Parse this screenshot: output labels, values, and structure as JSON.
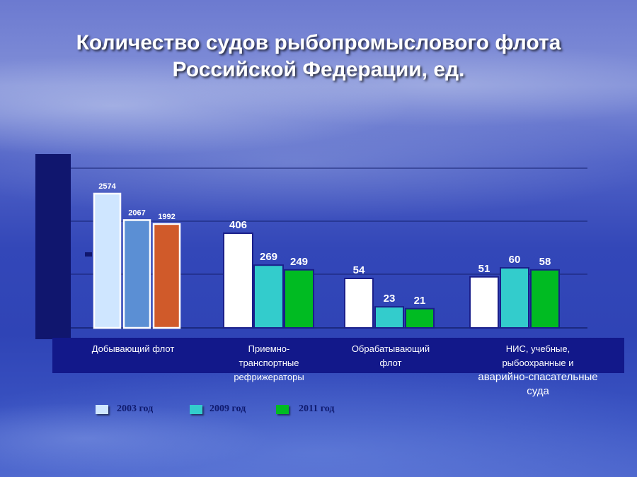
{
  "title_lines": [
    "Количество судов рыбопромыслового флота",
    "Российской Федерации, ед."
  ],
  "colors": {
    "series_2003": "#ffffff",
    "series_2009": "#33cccc",
    "series_2011": "#00bb22",
    "group1_2003": "#cfe6ff",
    "group1_2009": "#5b8fd4",
    "group1_2011": "#d05a2a",
    "axis_panel": "#10166e",
    "category_band": "#12188a"
  },
  "chart_data": {
    "type": "bar",
    "title": "Количество судов рыбопромыслового флота Российской Федерации, ед.",
    "categories": [
      "Добывающий флот",
      "Приемно-транспортные рефрижераторы",
      "Обрабатывающий флот",
      "НИС, учебные, рыбоохранные и аварийно-спасательные суда"
    ],
    "series": [
      {
        "name": "2003 год",
        "values": [
          2574,
          406,
          54,
          51
        ]
      },
      {
        "name": "2009 год",
        "values": [
          2067,
          269,
          23,
          60
        ]
      },
      {
        "name": "2011 год",
        "values": [
          1992,
          249,
          21,
          58
        ]
      }
    ],
    "value_labels": [
      [
        "2574",
        "2067",
        "1992"
      ],
      [
        "406",
        "269",
        "249"
      ],
      [
        "54",
        "23",
        "21"
      ],
      [
        "51",
        "60",
        "58"
      ]
    ],
    "grid": true,
    "legend": "bottom"
  },
  "category_labels": [
    [
      "Добывающий флот"
    ],
    [
      "Приемно-",
      "транспортные",
      "рефрижераторы"
    ],
    [
      "Обрабатывающий",
      "флот"
    ],
    [
      "НИС, учебные,",
      "рыбоохранные и",
      "аварийно-спасательные",
      "суда"
    ]
  ],
  "legend": [
    "2003 год",
    "2009 год",
    "2011 год"
  ]
}
